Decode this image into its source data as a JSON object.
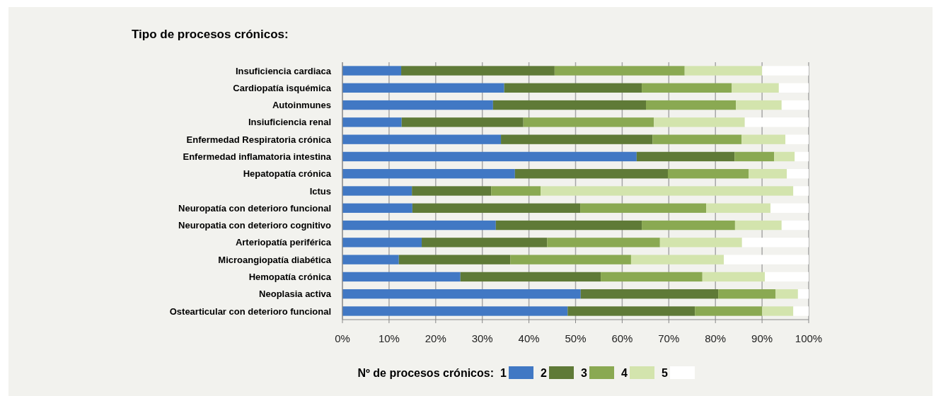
{
  "chart_data": {
    "type": "bar",
    "orientation": "horizontal",
    "stacked": true,
    "title": "Tipo de procesos crónicos:",
    "legend_title": "Nº de procesos crónicos:",
    "legend": "bottom",
    "grid": "x",
    "categories": [
      "Insuficiencia cardiaca",
      "Cardiopatía isquémica",
      "Autoinmunes",
      "Insiuficiencia renal",
      "Enfermedad Respiratoria crónica",
      "Enfermedad  inflamatoria intestina",
      "Hepatopatía crónica",
      "Ictus",
      "Neuropatía con deterioro funcional",
      "Neuropatia con deterioro cognitivo",
      "Arteriopatía periférica",
      "Microangiopatía diabética",
      "Hemopatía crónica",
      "Neoplasia activa",
      "Ostearticular con deterioro funcional"
    ],
    "xlim": [
      0,
      100
    ],
    "xticks": [
      {
        "value": 0,
        "label": "0%"
      },
      {
        "value": 10,
        "label": "10%"
      },
      {
        "value": 20,
        "label": "20%"
      },
      {
        "value": 30,
        "label": "30%"
      },
      {
        "value": 40,
        "label": "40%"
      },
      {
        "value": 50,
        "label": "50%"
      },
      {
        "value": 60,
        "label": "60%"
      },
      {
        "value": 70,
        "label": "70%"
      },
      {
        "value": 80,
        "label": "80%"
      },
      {
        "value": 90,
        "label": "90%"
      },
      {
        "value": 100,
        "label": "100%"
      }
    ],
    "series": [
      {
        "name": "1",
        "color": "#4178c4",
        "values": [
          12.6,
          34.7,
          32.3,
          12.7,
          34.0,
          63.1,
          37.0,
          14.9,
          15.0,
          32.9,
          17.0,
          12.1,
          25.3,
          51.1,
          48.3
        ]
      },
      {
        "name": "2",
        "color": "#5f7a37",
        "values": [
          32.9,
          29.5,
          32.8,
          26.1,
          32.5,
          21.0,
          32.8,
          17.0,
          36.0,
          31.3,
          26.9,
          23.9,
          30.1,
          29.5,
          27.3
        ]
      },
      {
        "name": "3",
        "color": "#8aa952",
        "values": [
          27.9,
          19.3,
          19.3,
          28.0,
          19.1,
          8.5,
          17.3,
          10.6,
          27.0,
          20.0,
          24.2,
          25.9,
          21.8,
          12.3,
          14.4
        ]
      },
      {
        "name": "4",
        "color": "#d3e4ad",
        "values": [
          16.6,
          10.1,
          9.8,
          19.5,
          9.4,
          4.4,
          8.2,
          54.2,
          13.8,
          10.0,
          17.6,
          19.9,
          13.4,
          4.8,
          6.7
        ]
      },
      {
        "name": "5",
        "color": "#ffffff",
        "values": [
          10.0,
          6.4,
          5.8,
          13.7,
          5.0,
          3.0,
          4.7,
          3.3,
          8.2,
          5.8,
          14.3,
          18.2,
          9.4,
          2.3,
          3.3
        ]
      }
    ]
  }
}
